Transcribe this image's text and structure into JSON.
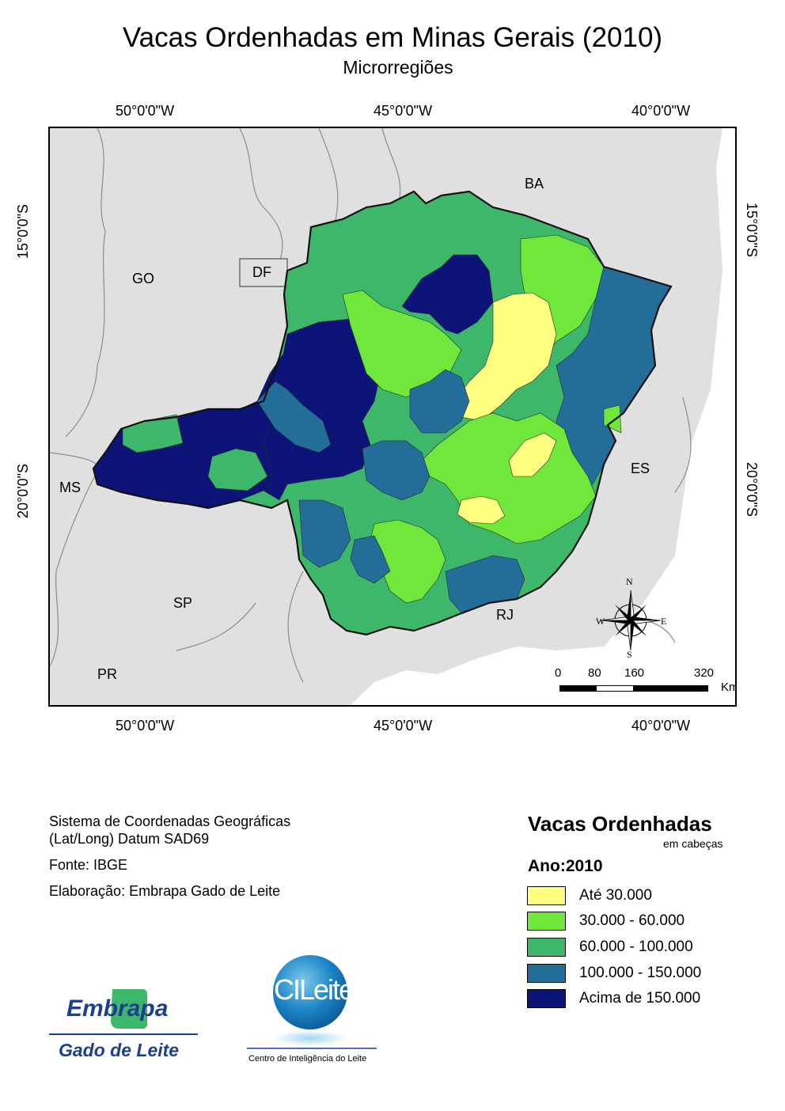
{
  "title": "Vacas Ordenhadas em Minas Gerais (2010)",
  "subtitle": "Microrregiões",
  "graticule": {
    "lon_labels": [
      "50°0'0\"W",
      "45°0'0\"W",
      "40°0'0\"W"
    ],
    "lat_labels": [
      "15°0'0\"S",
      "20°0'0\"S"
    ]
  },
  "state_labels": {
    "ba": "BA",
    "go": "GO",
    "df": "DF",
    "ms": "MS",
    "sp": "SP",
    "es": "ES",
    "rj": "RJ",
    "pr": "PR"
  },
  "north_arrow": {
    "n": "N",
    "s": "S",
    "e": "E",
    "w": "W"
  },
  "scale_bar": {
    "ticks": [
      "0",
      "80",
      "160",
      "320"
    ],
    "unit": "Km"
  },
  "info": {
    "coord_system_line1": "Sistema de Coordenadas Geográficas",
    "coord_system_line2": "(Lat/Long) Datum SAD69",
    "source": "Fonte: IBGE",
    "author": "Elaboração: Embrapa Gado de Leite"
  },
  "legend": {
    "title": "Vacas Ordenhadas",
    "unit": "em cabeças",
    "year": "Ano:2010",
    "classes": [
      {
        "label": "Até 30.000",
        "color": "#ffff80"
      },
      {
        "label": "30.000 - 60.000",
        "color": "#6fe83b"
      },
      {
        "label": "60.000 - 100.000",
        "color": "#3db86a"
      },
      {
        "label": "100.000 - 150.000",
        "color": "#226e99"
      },
      {
        "label": "Acima de 150.000",
        "color": "#0c1478"
      }
    ]
  },
  "logos": {
    "embrapa_name": "Embrapa",
    "embrapa_sub": "Gado de Leite",
    "cileite_name": "CILeite",
    "cileite_sub": "Centro de Inteligência do Leite"
  }
}
